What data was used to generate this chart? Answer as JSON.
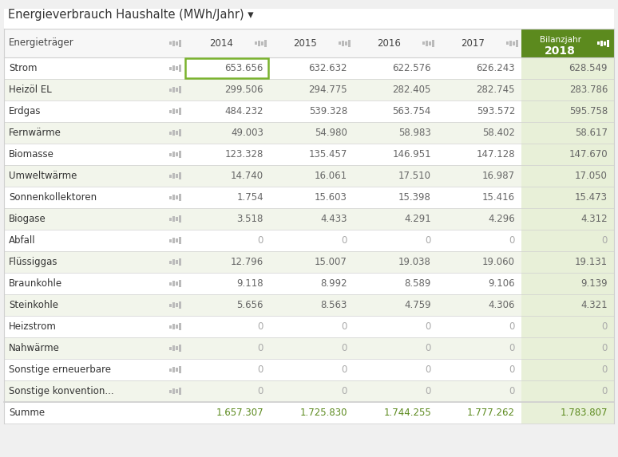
{
  "title": "Energieverbrauch Haushalte (MWh/Jahr) ▾",
  "years": [
    "2014",
    "2015",
    "2016",
    "2017",
    "2018"
  ],
  "rows": [
    {
      "label": "Strom",
      "values": [
        "653.656",
        "632.632",
        "622.576",
        "626.243",
        "628.549"
      ]
    },
    {
      "label": "Heizöl EL",
      "values": [
        "299.506",
        "294.775",
        "282.405",
        "282.745",
        "283.786"
      ]
    },
    {
      "label": "Erdgas",
      "values": [
        "484.232",
        "539.328",
        "563.754",
        "593.572",
        "595.758"
      ]
    },
    {
      "label": "Fernwärme",
      "values": [
        "49.003",
        "54.980",
        "58.983",
        "58.402",
        "58.617"
      ]
    },
    {
      "label": "Biomasse",
      "values": [
        "123.328",
        "135.457",
        "146.951",
        "147.128",
        "147.670"
      ]
    },
    {
      "label": "Umweltwärme",
      "values": [
        "14.740",
        "16.061",
        "17.510",
        "16.987",
        "17.050"
      ]
    },
    {
      "label": "Sonnenkollektoren",
      "values": [
        "1.754",
        "15.603",
        "15.398",
        "15.416",
        "15.473"
      ]
    },
    {
      "label": "Biogase",
      "values": [
        "3.518",
        "4.433",
        "4.291",
        "4.296",
        "4.312"
      ]
    },
    {
      "label": "Abfall",
      "values": [
        "0",
        "0",
        "0",
        "0",
        "0"
      ]
    },
    {
      "label": "Flüssiggas",
      "values": [
        "12.796",
        "15.007",
        "19.038",
        "19.060",
        "19.131"
      ]
    },
    {
      "label": "Braunkohle",
      "values": [
        "9.118",
        "8.992",
        "8.589",
        "9.106",
        "9.139"
      ]
    },
    {
      "label": "Steinkohle",
      "values": [
        "5.656",
        "8.563",
        "4.759",
        "4.306",
        "4.321"
      ]
    },
    {
      "label": "Heizstrom",
      "values": [
        "0",
        "0",
        "0",
        "0",
        "0"
      ]
    },
    {
      "label": "Nahwärme",
      "values": [
        "0",
        "0",
        "0",
        "0",
        "0"
      ]
    },
    {
      "label": "Sonstige erneuerbare",
      "values": [
        "0",
        "0",
        "0",
        "0",
        "0"
      ]
    },
    {
      "label": "Sonstige konvention...",
      "values": [
        "0",
        "0",
        "0",
        "0",
        "0"
      ]
    }
  ],
  "summe": [
    "1.657.307",
    "1.725.830",
    "1.744.255",
    "1.777.262",
    "1.783.807"
  ],
  "bg_color": "#f0f0f0",
  "table_bg": "#ffffff",
  "col_header_bg": "#5c8a1e",
  "col_header_fg": "#ffffff",
  "last_col_bg": "#e8f0d8",
  "alt_row_bg": "#f2f5eb",
  "row_bg": "#ffffff",
  "border_color": "#d0d0d0",
  "text_color": "#666666",
  "zero_color": "#aaaaaa",
  "sum_color": "#5c8a1e",
  "strom_border": "#7ab32e",
  "icon_color": "#bbbbbb",
  "icon_color_white": "#ffffff"
}
